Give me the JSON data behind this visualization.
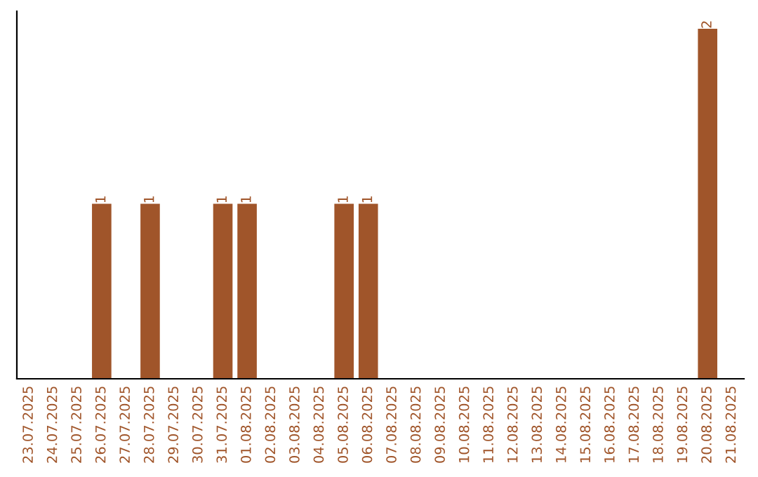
{
  "chart_data": {
    "type": "bar",
    "categories": [
      "23.07.2025",
      "24.07.2025",
      "25.07.2025",
      "26.07.2025",
      "27.07.2025",
      "28.07.2025",
      "29.07.2025",
      "30.07.2025",
      "31.07.2025",
      "01.08.2025",
      "02.08.2025",
      "03.08.2025",
      "04.08.2025",
      "05.08.2025",
      "06.08.2025",
      "07.08.2025",
      "08.08.2025",
      "09.08.2025",
      "10.08.2025",
      "11.08.2025",
      "12.08.2025",
      "13.08.2025",
      "14.08.2025",
      "15.08.2025",
      "16.08.2025",
      "17.08.2025",
      "18.08.2025",
      "19.08.2025",
      "20.08.2025",
      "21.08.2025"
    ],
    "values": [
      0,
      0,
      0,
      1,
      0,
      1,
      0,
      0,
      1,
      1,
      0,
      0,
      0,
      1,
      1,
      0,
      0,
      0,
      0,
      0,
      0,
      0,
      0,
      0,
      0,
      0,
      0,
      0,
      2,
      0
    ],
    "value_labels": [
      null,
      null,
      null,
      "1",
      null,
      "1",
      null,
      null,
      "1",
      "1",
      null,
      null,
      null,
      "1",
      "1",
      null,
      null,
      null,
      null,
      null,
      null,
      null,
      null,
      null,
      null,
      null,
      null,
      null,
      "2",
      null
    ],
    "color": "#a0552a",
    "tick_labels": "x",
    "grid": false
  }
}
